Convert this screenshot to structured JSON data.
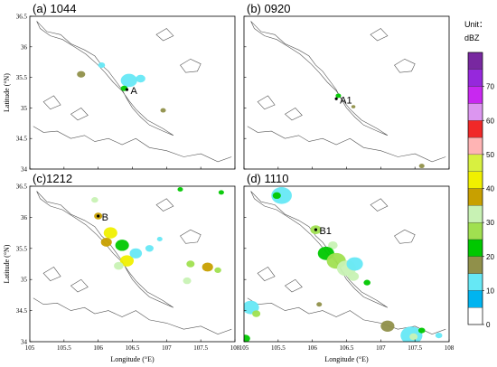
{
  "chart_data": {
    "type": "heatmap",
    "panels": [
      {
        "title": "(a) 1044",
        "points": [
          {
            "label": "A",
            "lon": 106.42,
            "lat": 35.3
          }
        ],
        "echoes": [
          {
            "lon": 106.45,
            "lat": 35.45,
            "r": 0.12,
            "level": 10
          },
          {
            "lon": 106.38,
            "lat": 35.32,
            "r": 0.05,
            "level": 20
          },
          {
            "lon": 106.62,
            "lat": 35.48,
            "r": 0.07,
            "level": 10
          },
          {
            "lon": 106.05,
            "lat": 35.7,
            "r": 0.05,
            "level": 10
          },
          {
            "lon": 105.75,
            "lat": 35.55,
            "r": 0.06,
            "level": 15
          },
          {
            "lon": 106.95,
            "lat": 34.96,
            "r": 0.04,
            "level": 15
          }
        ]
      },
      {
        "title": "(b) 0920",
        "points": [
          {
            "label": "A1",
            "lon": 106.35,
            "lat": 35.15
          }
        ],
        "echoes": [
          {
            "lon": 106.38,
            "lat": 35.2,
            "r": 0.04,
            "level": 20
          },
          {
            "lon": 106.6,
            "lat": 35.02,
            "r": 0.03,
            "level": 15
          },
          {
            "lon": 107.6,
            "lat": 34.05,
            "r": 0.04,
            "level": 15
          }
        ]
      },
      {
        "title": "(c)1212",
        "points": [
          {
            "label": "B",
            "lon": 106.0,
            "lat": 36.02
          }
        ],
        "echoes": [
          {
            "lon": 105.95,
            "lat": 36.28,
            "r": 0.05,
            "level": 30
          },
          {
            "lon": 106.0,
            "lat": 36.02,
            "r": 0.06,
            "level": 35
          },
          {
            "lon": 106.18,
            "lat": 35.75,
            "r": 0.1,
            "level": 40
          },
          {
            "lon": 106.12,
            "lat": 35.6,
            "r": 0.08,
            "level": 35
          },
          {
            "lon": 106.35,
            "lat": 35.55,
            "r": 0.1,
            "level": 20
          },
          {
            "lon": 106.42,
            "lat": 35.3,
            "r": 0.1,
            "level": 40
          },
          {
            "lon": 106.3,
            "lat": 35.22,
            "r": 0.07,
            "level": 30
          },
          {
            "lon": 106.55,
            "lat": 35.42,
            "r": 0.09,
            "level": 10
          },
          {
            "lon": 106.75,
            "lat": 35.5,
            "r": 0.06,
            "level": 10
          },
          {
            "lon": 107.35,
            "lat": 35.25,
            "r": 0.06,
            "level": 25
          },
          {
            "lon": 107.6,
            "lat": 35.2,
            "r": 0.08,
            "level": 35
          },
          {
            "lon": 107.75,
            "lat": 35.15,
            "r": 0.05,
            "level": 25
          },
          {
            "lon": 107.3,
            "lat": 34.98,
            "r": 0.06,
            "level": 30
          },
          {
            "lon": 107.2,
            "lat": 36.45,
            "r": 0.04,
            "level": 20
          },
          {
            "lon": 107.8,
            "lat": 36.4,
            "r": 0.04,
            "level": 20
          },
          {
            "lon": 106.9,
            "lat": 35.65,
            "r": 0.04,
            "level": 10
          }
        ]
      },
      {
        "title": "(d) 1110",
        "points": [
          {
            "label": "B1",
            "lon": 106.05,
            "lat": 35.8
          }
        ],
        "echoes": [
          {
            "lon": 105.55,
            "lat": 36.35,
            "r": 0.15,
            "level": 10
          },
          {
            "lon": 105.48,
            "lat": 36.35,
            "r": 0.06,
            "level": 20
          },
          {
            "lon": 106.05,
            "lat": 35.8,
            "r": 0.08,
            "level": 25
          },
          {
            "lon": 106.3,
            "lat": 35.55,
            "r": 0.07,
            "level": 30
          },
          {
            "lon": 106.2,
            "lat": 35.42,
            "r": 0.12,
            "level": 20
          },
          {
            "lon": 106.35,
            "lat": 35.3,
            "r": 0.14,
            "level": 25
          },
          {
            "lon": 106.5,
            "lat": 35.18,
            "r": 0.14,
            "level": 30
          },
          {
            "lon": 106.62,
            "lat": 35.25,
            "r": 0.12,
            "level": 10
          },
          {
            "lon": 106.6,
            "lat": 35.05,
            "r": 0.08,
            "level": 30
          },
          {
            "lon": 106.8,
            "lat": 34.95,
            "r": 0.05,
            "level": 20
          },
          {
            "lon": 105.1,
            "lat": 34.55,
            "r": 0.12,
            "level": 10
          },
          {
            "lon": 105.18,
            "lat": 34.45,
            "r": 0.06,
            "level": 25
          },
          {
            "lon": 105.02,
            "lat": 34.05,
            "r": 0.07,
            "level": 20
          },
          {
            "lon": 107.1,
            "lat": 34.25,
            "r": 0.1,
            "level": 15
          },
          {
            "lon": 107.45,
            "lat": 34.1,
            "r": 0.16,
            "level": 10
          },
          {
            "lon": 107.48,
            "lat": 34.08,
            "r": 0.06,
            "level": 30
          },
          {
            "lon": 107.85,
            "lat": 34.1,
            "r": 0.05,
            "level": 10
          },
          {
            "lon": 106.1,
            "lat": 34.6,
            "r": 0.04,
            "level": 15
          },
          {
            "lon": 107.6,
            "lat": 34.18,
            "r": 0.05,
            "level": 20
          }
        ]
      }
    ],
    "xlim": [
      105,
      108
    ],
    "ylim": [
      34,
      36.5
    ],
    "xticks": [
      "105",
      "105.5",
      "106",
      "106.5",
      "107",
      "107.5",
      "108"
    ],
    "yticks": [
      "34",
      "34.5",
      "35",
      "35.5",
      "36",
      "36.5"
    ],
    "xlabel": "Longitude (°E)",
    "ylabel": "Latitude (°N)",
    "colorbar": {
      "unit_line1": "Unit：",
      "unit_line2": "dBZ",
      "labels": [
        "0",
        "10",
        "20",
        "30",
        "40",
        "50",
        "60",
        "70"
      ],
      "colors": [
        "#ffffff",
        "#00b4f0",
        "#66e8f5",
        "#90904a",
        "#00c800",
        "#a0e050",
        "#c8f2b4",
        "#c8a000",
        "#f0f000",
        "#d8f040",
        "#ffb4b4",
        "#f02828",
        "#dc96f0",
        "#c828f0",
        "#9628dc",
        "#7828a0"
      ]
    }
  }
}
